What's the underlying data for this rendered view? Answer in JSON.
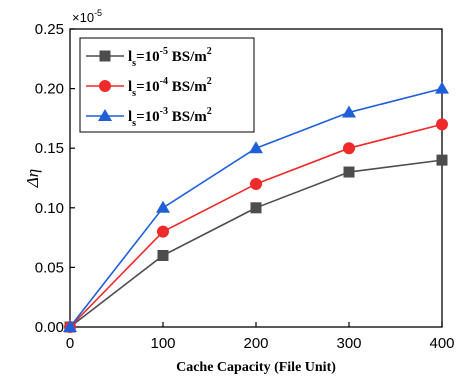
{
  "chart_data": {
    "type": "line",
    "title": "",
    "xlabel": "Cache Capacity (File Unit)",
    "ylabel": "Δη",
    "y_multiplier": {
      "base": "×10",
      "exp": "-5"
    },
    "xlim": [
      0,
      400
    ],
    "ylim": [
      0,
      0.25
    ],
    "x_ticks": [
      "0",
      "100",
      "200",
      "300",
      "400"
    ],
    "y_ticks": [
      "0.00",
      "0.05",
      "0.10",
      "0.15",
      "0.20",
      "0.25"
    ],
    "x": [
      0,
      100,
      200,
      300,
      400
    ],
    "series": [
      {
        "name_main": "l",
        "name_sub": "s",
        "name_eq": "=10",
        "name_exp": "-5",
        "name_unit": " BS/m",
        "name_unit_exp": "2",
        "color": "#4d4d4d",
        "marker": "square",
        "values": [
          0,
          0.06,
          0.1,
          0.13,
          0.14
        ]
      },
      {
        "name_main": "l",
        "name_sub": "s",
        "name_eq": "=10",
        "name_exp": "-4",
        "name_unit": " BS/m",
        "name_unit_exp": "2",
        "color": "#ee2a2a",
        "marker": "circle",
        "values": [
          0,
          0.08,
          0.12,
          0.15,
          0.17
        ]
      },
      {
        "name_main": "l",
        "name_sub": "s",
        "name_eq": "=10",
        "name_exp": "-3",
        "name_unit": " BS/m",
        "name_unit_exp": "2",
        "color": "#1f5fd8",
        "marker": "triangle",
        "values": [
          0,
          0.1,
          0.15,
          0.18,
          0.2
        ]
      }
    ],
    "legend": "top-left",
    "grid": false
  }
}
